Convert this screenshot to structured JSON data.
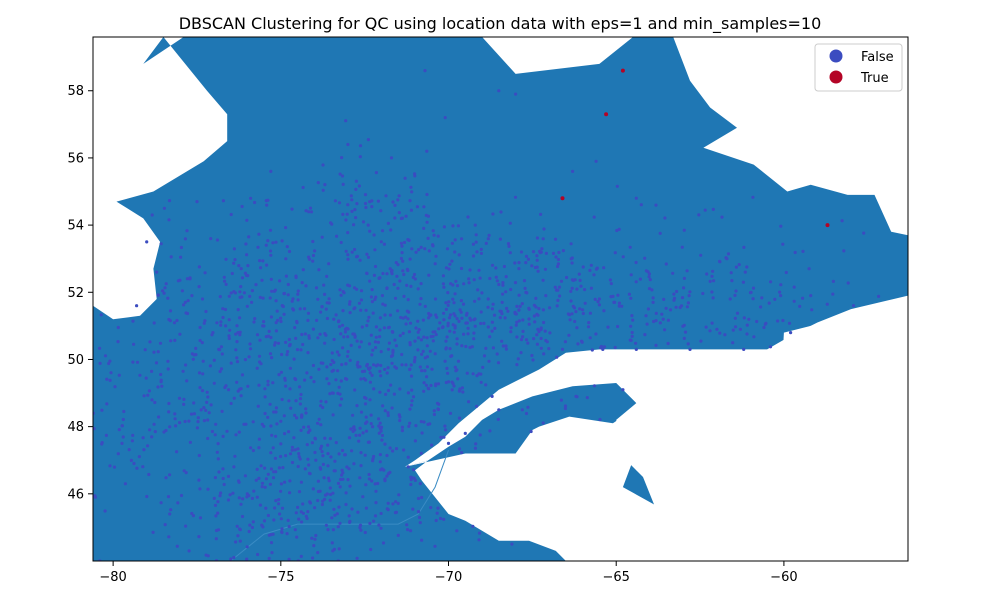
{
  "chart_data": {
    "type": "scatter",
    "title": "DBSCAN Clustering for QC using location data with eps=1 and min_samples=10",
    "xlabel": "",
    "ylabel": "",
    "xlim": [
      -80.6,
      -56.3
    ],
    "ylim": [
      44.0,
      59.6
    ],
    "xticks": [
      -80,
      -75,
      -70,
      -65,
      -60
    ],
    "xtick_labels": [
      "−80",
      "−75",
      "−70",
      "−65",
      "−60"
    ],
    "yticks": [
      46,
      48,
      50,
      52,
      54,
      56,
      58
    ],
    "grid": false,
    "legend_position": "top-right",
    "background_map": {
      "description_color": "#1f77b4",
      "land_color": "#1f77b4",
      "water_color": "#ffffff",
      "border_color": "#3a8bc4",
      "main_polygon": [
        [
          -78.5,
          59.6
        ],
        [
          -79.1,
          58.8
        ],
        [
          -77.9,
          59.6
        ],
        [
          -69.0,
          59.6
        ],
        [
          -68.0,
          58.5
        ],
        [
          -65.5,
          58.8
        ],
        [
          -64.5,
          59.6
        ],
        [
          -63.3,
          59.6
        ],
        [
          -62.8,
          58.3
        ],
        [
          -62.2,
          57.5
        ],
        [
          -61.4,
          56.9
        ],
        [
          -62.4,
          56.3
        ],
        [
          -60.9,
          55.8
        ],
        [
          -59.9,
          55.0
        ],
        [
          -59.2,
          55.2
        ],
        [
          -58.1,
          54.9
        ],
        [
          -57.3,
          54.9
        ],
        [
          -56.8,
          53.8
        ],
        [
          -56.3,
          53.7
        ],
        [
          -56.3,
          51.9
        ],
        [
          -58.0,
          51.5
        ],
        [
          -59.0,
          51.1
        ],
        [
          -59.8,
          50.7
        ],
        [
          -60.5,
          50.3
        ],
        [
          -61.5,
          50.3
        ],
        [
          -62.5,
          50.3
        ],
        [
          -64.0,
          50.3
        ],
        [
          -65.5,
          50.3
        ],
        [
          -66.5,
          50.2
        ],
        [
          -67.3,
          49.7
        ],
        [
          -68.5,
          49.1
        ],
        [
          -69.7,
          48.1
        ],
        [
          -70.3,
          47.5
        ],
        [
          -71.0,
          47.0
        ],
        [
          -71.3,
          46.8
        ],
        [
          -70.6,
          47.0
        ],
        [
          -70.0,
          47.4
        ],
        [
          -69.5,
          47.7
        ],
        [
          -69.0,
          48.2
        ],
        [
          -68.5,
          48.5
        ],
        [
          -67.5,
          48.9
        ],
        [
          -66.3,
          49.2
        ],
        [
          -65.0,
          49.3
        ],
        [
          -64.4,
          48.7
        ],
        [
          -65.0,
          48.2
        ],
        [
          -64.8,
          47.1
        ],
        [
          -64.2,
          46.5
        ],
        [
          -63.8,
          45.5
        ],
        [
          -63.2,
          44.3
        ],
        [
          -63.0,
          44.0
        ],
        [
          -80.6,
          44.0
        ],
        [
          -80.6,
          51.6
        ],
        [
          -80.0,
          51.2
        ],
        [
          -79.2,
          51.3
        ],
        [
          -78.7,
          51.8
        ],
        [
          -78.8,
          52.7
        ],
        [
          -78.6,
          53.5
        ],
        [
          -79.1,
          54.2
        ],
        [
          -79.9,
          54.7
        ],
        [
          -78.8,
          55.0
        ],
        [
          -77.3,
          55.9
        ],
        [
          -76.6,
          56.5
        ],
        [
          -76.6,
          57.3
        ],
        [
          -77.2,
          58.0
        ],
        [
          -78.5,
          59.6
        ]
      ],
      "water_polygons": [
        [
          [
            -66.5,
            44.0
          ],
          [
            -66.8,
            44.3
          ],
          [
            -67.6,
            44.6
          ],
          [
            -68.5,
            44.6
          ],
          [
            -69.5,
            45.2
          ],
          [
            -70.0,
            45.4
          ],
          [
            -70.4,
            45.9
          ],
          [
            -70.8,
            46.4
          ],
          [
            -71.0,
            46.7
          ],
          [
            -70.6,
            47.0
          ],
          [
            -71.3,
            46.8
          ],
          [
            -69.5,
            47.2
          ],
          [
            -68.6,
            47.2
          ],
          [
            -68.0,
            47.2
          ],
          [
            -67.5,
            47.9
          ],
          [
            -67.3,
            48.0
          ],
          [
            -66.4,
            48.3
          ],
          [
            -65.1,
            48.1
          ],
          [
            -64.5,
            48.5
          ],
          [
            -64.5,
            47.0
          ],
          [
            -64.8,
            46.2
          ],
          [
            -63.0,
            45.2
          ],
          [
            -62.0,
            45.7
          ],
          [
            -61.4,
            45.5
          ],
          [
            -61.4,
            45.0
          ],
          [
            -60.8,
            44.9
          ],
          [
            -61.8,
            44.0
          ],
          [
            -66.5,
            44.0
          ]
        ],
        [
          [
            -64.4,
            46.7
          ],
          [
            -64.0,
            47.0
          ],
          [
            -63.0,
            46.5
          ],
          [
            -61.9,
            46.5
          ],
          [
            -62.5,
            46.0
          ],
          [
            -63.5,
            46.0
          ],
          [
            -64.4,
            46.7
          ]
        ],
        [
          [
            -64.5,
            49.9
          ],
          [
            -63.0,
            49.8
          ],
          [
            -62.0,
            49.4
          ],
          [
            -61.5,
            49.0
          ],
          [
            -61.7,
            49.2
          ],
          [
            -62.6,
            49.6
          ],
          [
            -63.6,
            49.9
          ],
          [
            -64.5,
            49.9
          ]
        ],
        [
          [
            -60.0,
            50.8
          ],
          [
            -58.8,
            51.1
          ],
          [
            -57.5,
            51.5
          ],
          [
            -56.3,
            51.5
          ],
          [
            -56.3,
            50.4
          ],
          [
            -57.0,
            49.3
          ],
          [
            -57.5,
            48.6
          ],
          [
            -58.6,
            48.2
          ],
          [
            -59.1,
            47.6
          ],
          [
            -59.5,
            47.8
          ],
          [
            -60.0,
            48.0
          ],
          [
            -60.1,
            49.0
          ],
          [
            -60.0,
            50.8
          ]
        ]
      ]
    },
    "series": [
      {
        "name": "False",
        "color": "#3b4cc0",
        "cluster_centers": [
          [
            -75.5,
            50.6
          ],
          [
            -74.2,
            51.5
          ],
          [
            -72.8,
            50.2
          ],
          [
            -71.5,
            51.4
          ],
          [
            -76.8,
            52.2
          ],
          [
            -74.0,
            47.0
          ],
          [
            -75.9,
            45.8
          ],
          [
            -73.8,
            45.5
          ],
          [
            -70.5,
            49.9
          ],
          [
            -72.5,
            48.4
          ],
          [
            -77.5,
            49.5
          ],
          [
            -78.5,
            47.8
          ],
          [
            -67.0,
            52.2
          ],
          [
            -63.5,
            51.5
          ],
          [
            -60.5,
            51.8
          ],
          [
            -69.0,
            50.8
          ],
          [
            -66.0,
            50.5
          ],
          [
            -71.9,
            46.0
          ],
          [
            -72.5,
            54.2
          ],
          [
            -68.8,
            52.4
          ]
        ],
        "approx_point_count": 1800,
        "notes": [
          "Dense cluster of points covering southern and central Quebec"
        ],
        "sample_points": [
          [
            -79.3,
            51.6
          ],
          [
            -79.0,
            53.5
          ],
          [
            -78.7,
            52.6
          ],
          [
            -76.0,
            46.0
          ],
          [
            -75.7,
            45.9
          ],
          [
            -73.9,
            45.8
          ],
          [
            -71.2,
            46.8
          ],
          [
            -70.0,
            47.5
          ],
          [
            -69.5,
            47.8
          ],
          [
            -68.5,
            48.5
          ],
          [
            -66.6,
            50.3
          ],
          [
            -65.4,
            50.3
          ],
          [
            -64.4,
            50.3
          ],
          [
            -62.8,
            50.3
          ],
          [
            -61.2,
            50.3
          ],
          [
            -59.8,
            50.8
          ],
          [
            -59.2,
            51.9
          ],
          [
            -61.6,
            51.8
          ],
          [
            -63.9,
            51.7
          ],
          [
            -65.5,
            51.8
          ],
          [
            -67.1,
            51.9
          ],
          [
            -68.4,
            51.7
          ],
          [
            -69.2,
            54.0
          ],
          [
            -68.5,
            58.0
          ],
          [
            -68.0,
            57.9
          ],
          [
            -66.3,
            55.6
          ],
          [
            -65.6,
            55.9
          ],
          [
            -64.4,
            54.8
          ],
          [
            -64.8,
            49.1
          ],
          [
            -66.2,
            48.9
          ],
          [
            -70.7,
            58.6
          ],
          [
            -70.1,
            57.2
          ],
          [
            -73.0,
            56.4
          ],
          [
            -71.7,
            56.0
          ],
          [
            -75.3,
            55.6
          ],
          [
            -77.5,
            54.7
          ],
          [
            -68.7,
            48.9
          ],
          [
            -67.8,
            48.5
          ],
          [
            -63.6,
            51.2
          ],
          [
            -60.1,
            51.9
          ]
        ]
      },
      {
        "name": "True",
        "color": "#b40426",
        "points": [
          [
            -64.8,
            58.6
          ],
          [
            -65.3,
            57.3
          ],
          [
            -66.6,
            54.8
          ],
          [
            -58.7,
            54.0
          ]
        ]
      }
    ],
    "legend": [
      {
        "label": "False",
        "color": "#3b4cc0"
      },
      {
        "label": "True",
        "color": "#b40426"
      }
    ]
  }
}
